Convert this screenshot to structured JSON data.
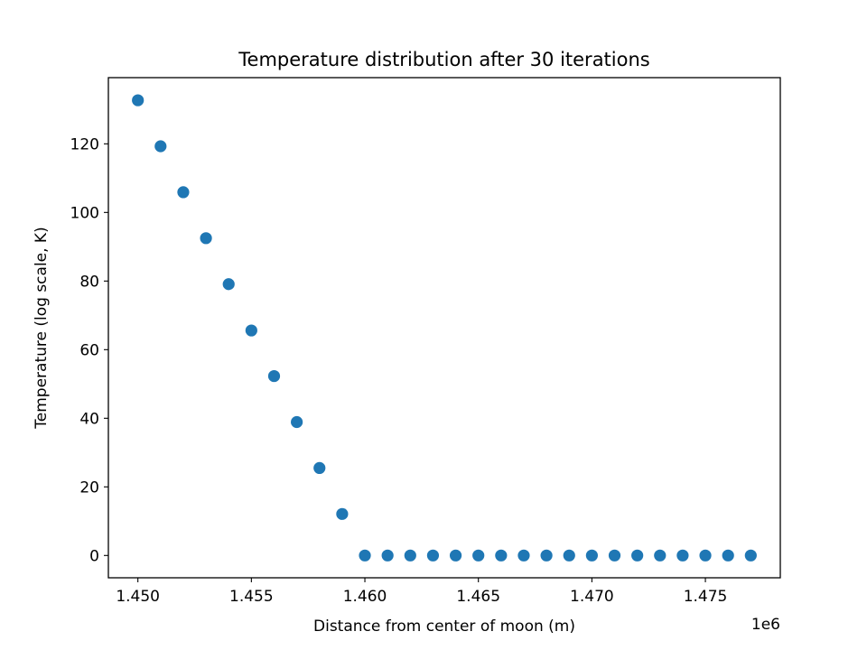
{
  "chart_data": {
    "type": "scatter",
    "title": "Temperature distribution after 30 iterations",
    "xlabel": "Distance from center of moon (m)",
    "ylabel": "Temperature (log scale, K)",
    "x_offset_label": "1e6",
    "xlim": [
      1448700,
      1478300
    ],
    "ylim": [
      -6.5,
      139.3
    ],
    "xticks": [
      1450000,
      1455000,
      1460000,
      1465000,
      1470000,
      1475000
    ],
    "xtick_labels": [
      "1.450",
      "1.455",
      "1.460",
      "1.465",
      "1.470",
      "1.475"
    ],
    "yticks": [
      0,
      20,
      40,
      60,
      80,
      100,
      120
    ],
    "ytick_labels": [
      "0",
      "20",
      "40",
      "60",
      "80",
      "100",
      "120"
    ],
    "grid": false,
    "marker_color": "#1f77b4",
    "x": [
      1450000,
      1451000,
      1452000,
      1453000,
      1454000,
      1455000,
      1456000,
      1457000,
      1458000,
      1459000,
      1460000,
      1461000,
      1462000,
      1463000,
      1464000,
      1465000,
      1466000,
      1467000,
      1468000,
      1469000,
      1470000,
      1471000,
      1472000,
      1473000,
      1474000,
      1475000,
      1476000,
      1477000
    ],
    "y": [
      132.7,
      119.3,
      105.9,
      92.5,
      79.1,
      65.6,
      52.3,
      38.9,
      25.5,
      12.1,
      0,
      0,
      0,
      0,
      0,
      0,
      0,
      0,
      0,
      0,
      0,
      0,
      0,
      0,
      0,
      0,
      0,
      0
    ]
  }
}
